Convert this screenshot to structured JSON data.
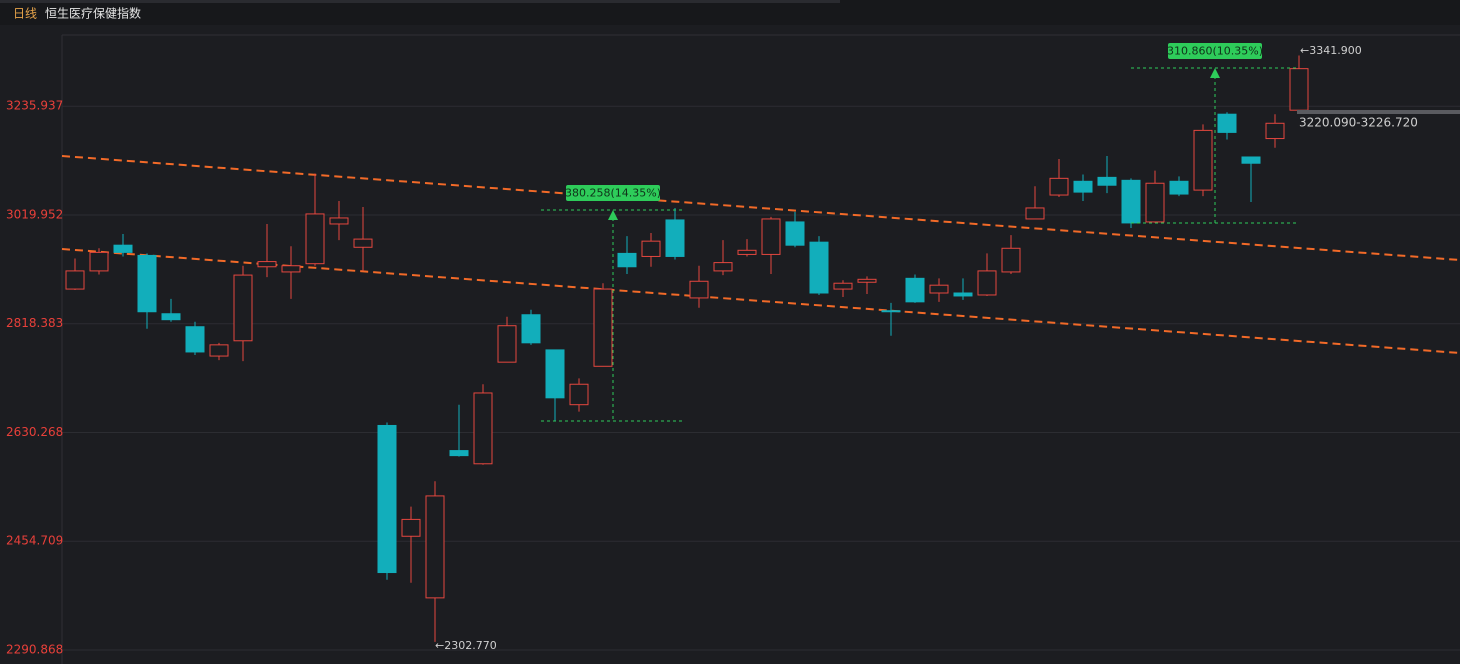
{
  "header": {
    "period": "日线",
    "title": "恒生医疗保健指数"
  },
  "chart_data": {
    "type": "candlestick",
    "log_scale": true,
    "grid": true,
    "ylim": [
      2270.6,
      3385.6
    ],
    "yticks": [
      2290.868,
      2454.709,
      2630.268,
      2818.383,
      3019.952,
      3235.937
    ],
    "up_color": "#e5473f",
    "down_color": "#12aebb",
    "open": [
      2881.1,
      2914.5,
      2962.5,
      2943.3,
      2836.3,
      2813.0,
      2761.1,
      2788.0,
      2922.2,
      2912.6,
      2927.9,
      3002.7,
      2958.6,
      2642.0,
      2462.5,
      2368.0,
      2600.2,
      2578.5,
      2750.4,
      2834.5,
      2771.9,
      2677.1,
      2743.2,
      2947.1,
      2941.4,
      3010.4,
      2864.9,
      2914.5,
      2945.2,
      2945.2,
      3006.6,
      2968.2,
      2881.1,
      2893.6,
      2841.7,
      2900.8,
      2873.9,
      2873.9,
      2870.3,
      2912.6,
      3012.3,
      3058.4,
      3085.2,
      3092.9,
      3087.1,
      3006.6,
      3085.2,
      3068.0,
      3219.5,
      3133.2,
      3170.1,
      3227.7
    ],
    "high": [
      2937.5,
      2956.7,
      2983.6,
      2947.1,
      2863.2,
      2822.0,
      2784.4,
      2924.1,
      3002.7,
      2960.5,
      3100.6,
      3046.9,
      3035.3,
      2647.0,
      2509.3,
      2550.0,
      2677.1,
      2712.1,
      2830.9,
      2843.5,
      2771.9,
      2722.2,
      2891.8,
      2979.7,
      2985.5,
      3033.4,
      2924.1,
      2972.1,
      2974.0,
      3016.2,
      3025.8,
      2979.7,
      2897.2,
      2904.3,
      2856.0,
      2907.9,
      2900.8,
      2900.8,
      2947.1,
      2981.6,
      3075.6,
      3129.3,
      3098.6,
      3135.2,
      3091.0,
      3106.3,
      3094.8,
      3198.9,
      3223.6,
      3133.2,
      3219.5,
      3341.9
    ],
    "low": [
      2879.3,
      2907.9,
      2941.4,
      2809.4,
      2822.0,
      2762.9,
      2754.0,
      2752.2,
      2903.0,
      2863.2,
      2924.1,
      2972.1,
      2914.5,
      2395.5,
      2390.8,
      2302.77,
      2590.2,
      2576.9,
      2750.4,
      2780.8,
      2650.3,
      2665.4,
      2743.2,
      2908.8,
      2922.2,
      2935.6,
      2847.0,
      2906.8,
      2941.4,
      2908.8,
      2958.6,
      2870.3,
      2866.7,
      2872.1,
      2796.9,
      2856.0,
      2857.8,
      2861.4,
      2868.5,
      2908.8,
      3012.3,
      3054.5,
      3046.9,
      3062.2,
      2995.1,
      3004.7,
      3056.4,
      3056.4,
      3168.1,
      3044.9,
      3151.6,
      3225.7
    ],
    "close": [
      2914.5,
      2949.0,
      2949.0,
      2839.9,
      2825.6,
      2768.3,
      2780.8,
      2906.8,
      2931.8,
      2924.1,
      3021.9,
      3014.2,
      2974.0,
      2406.4,
      2489.0,
      2526.4,
      2591.9,
      2697.1,
      2814.8,
      2784.4,
      2688.8,
      2712.1,
      2881.1,
      2922.2,
      2970.1,
      2941.4,
      2895.4,
      2929.9,
      2952.9,
      3012.3,
      2962.5,
      2873.9,
      2891.8,
      2899.0,
      2839.9,
      2857.8,
      2888.2,
      2868.5,
      2914.5,
      2956.7,
      3033.4,
      3091.0,
      3064.1,
      3077.5,
      3004.7,
      3081.4,
      3060.3,
      3186.6,
      3182.5,
      3120.8,
      3201.0,
      3314.0
    ],
    "annotations": [
      "380.258(14.35%)",
      "310.860(10.35%)",
      "←2302.770",
      "←3341.900",
      "3220.090-3226.720"
    ]
  }
}
